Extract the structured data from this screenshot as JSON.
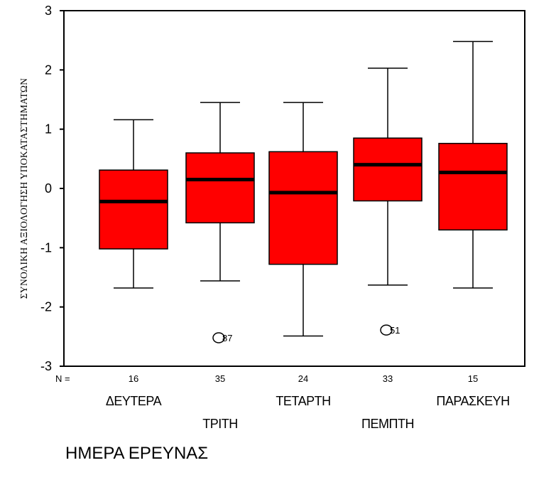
{
  "chart_data": {
    "type": "boxplot",
    "xlabel": "ΗΜΕΡΑ ΕΡΕΥΝΑΣ",
    "ylabel": "ΣΥΝΟΛΙΚΗ ΑΞΙΟΛΟΓΗΣΗ ΥΠΟΚΑΤΑΣΤΗΜΑΤΩΝ",
    "ylim": [
      -3,
      3
    ],
    "yticks": [
      -3,
      -2,
      -1,
      0,
      1,
      2,
      3
    ],
    "n_prefix": "N =",
    "box_color": "#ff0000",
    "categories": [
      "ΔΕΥΤΕΡΑ",
      "ΤΡΙΤΗ",
      "ΤΕΤΑΡΤΗ",
      "ΠΕΜΠΤΗ",
      "ΠΑΡΑΣΚΕΥΗ"
    ],
    "n": [
      16,
      35,
      24,
      33,
      15
    ],
    "boxes": [
      {
        "whisker_low": -1.68,
        "q1": -1.02,
        "median": -0.22,
        "q3": 0.31,
        "whisker_high": 1.16,
        "outliers": []
      },
      {
        "whisker_low": -1.56,
        "q1": -0.58,
        "median": 0.15,
        "q3": 0.6,
        "whisker_high": 1.45,
        "outliers": [
          {
            "value": -2.52,
            "label": "87"
          }
        ]
      },
      {
        "whisker_low": -2.49,
        "q1": -1.28,
        "median": -0.07,
        "q3": 0.62,
        "whisker_high": 1.45,
        "outliers": []
      },
      {
        "whisker_low": -1.63,
        "q1": -0.21,
        "median": 0.4,
        "q3": 0.85,
        "whisker_high": 2.03,
        "outliers": [
          {
            "value": -2.39,
            "label": "51"
          }
        ]
      },
      {
        "whisker_low": -1.68,
        "q1": -0.7,
        "median": 0.27,
        "q3": 0.76,
        "whisker_high": 2.48,
        "outliers": []
      }
    ]
  }
}
